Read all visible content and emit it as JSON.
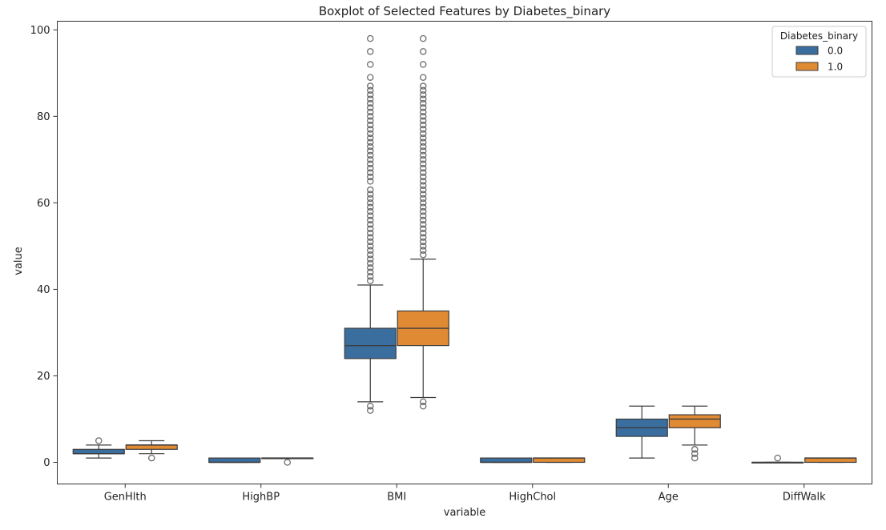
{
  "chart_data": {
    "type": "boxplot",
    "title": "Boxplot of Selected Features by Diabetes_binary",
    "xlabel": "variable",
    "ylabel": "value",
    "ylim": [
      -5,
      102
    ],
    "yticks": [
      0,
      20,
      40,
      60,
      80,
      100
    ],
    "categories": [
      "GenHlth",
      "HighBP",
      "BMI",
      "HighChol",
      "Age",
      "DiffWalk"
    ],
    "legend": {
      "title": "Diabetes_binary",
      "placement": "top-right"
    },
    "series": [
      {
        "name": "0.0",
        "color": "#3a6e9f",
        "boxes": [
          {
            "whisker_low": 1,
            "q1": 2,
            "median": 2,
            "q3": 3,
            "whisker_high": 4,
            "outliers": [
              5
            ]
          },
          {
            "whisker_low": 0,
            "q1": 0,
            "median": 0,
            "q3": 1,
            "whisker_high": 1,
            "outliers": []
          },
          {
            "whisker_low": 14,
            "q1": 24,
            "median": 27,
            "q3": 31,
            "whisker_high": 41,
            "outliers": [
              12,
              13,
              42,
              43,
              44,
              45,
              46,
              47,
              48,
              49,
              50,
              51,
              52,
              53,
              54,
              55,
              56,
              57,
              58,
              59,
              60,
              61,
              62,
              63,
              65,
              66,
              67,
              68,
              69,
              70,
              71,
              72,
              73,
              74,
              75,
              76,
              77,
              78,
              79,
              80,
              81,
              82,
              83,
              84,
              85,
              86,
              87,
              89,
              92,
              95,
              98
            ]
          },
          {
            "whisker_low": 0,
            "q1": 0,
            "median": 0,
            "q3": 1,
            "whisker_high": 1,
            "outliers": []
          },
          {
            "whisker_low": 1,
            "q1": 6,
            "median": 8,
            "q3": 10,
            "whisker_high": 13,
            "outliers": []
          },
          {
            "whisker_low": 0,
            "q1": 0,
            "median": 0,
            "q3": 0,
            "whisker_high": 0,
            "outliers": [
              1
            ]
          }
        ]
      },
      {
        "name": "1.0",
        "color": "#e08a34",
        "boxes": [
          {
            "whisker_low": 2,
            "q1": 3,
            "median": 4,
            "q3": 4,
            "whisker_high": 5,
            "outliers": [
              1
            ]
          },
          {
            "whisker_low": 1,
            "q1": 1,
            "median": 1,
            "q3": 1,
            "whisker_high": 1,
            "outliers": [
              0
            ]
          },
          {
            "whisker_low": 15,
            "q1": 27,
            "median": 31,
            "q3": 35,
            "whisker_high": 47,
            "outliers": [
              13,
              14,
              48,
              49,
              50,
              51,
              52,
              53,
              54,
              55,
              56,
              57,
              58,
              59,
              60,
              61,
              62,
              63,
              64,
              65,
              66,
              67,
              68,
              69,
              70,
              71,
              72,
              73,
              74,
              75,
              76,
              77,
              78,
              79,
              80,
              81,
              82,
              83,
              84,
              85,
              86,
              87,
              89,
              92,
              95,
              98
            ]
          },
          {
            "whisker_low": 0,
            "q1": 0,
            "median": 1,
            "q3": 1,
            "whisker_high": 1,
            "outliers": []
          },
          {
            "whisker_low": 4,
            "q1": 8,
            "median": 10,
            "q3": 11,
            "whisker_high": 13,
            "outliers": [
              1,
              2,
              3
            ]
          },
          {
            "whisker_low": 0,
            "q1": 0,
            "median": 1,
            "q3": 1,
            "whisker_high": 1,
            "outliers": []
          }
        ]
      }
    ]
  }
}
